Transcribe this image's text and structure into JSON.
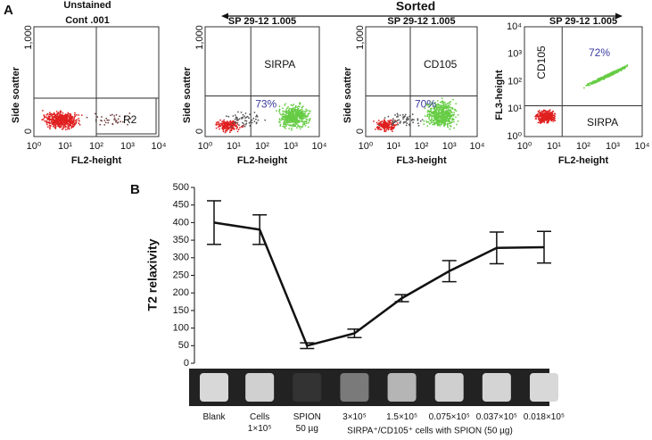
{
  "panel_a": {
    "label": "A",
    "sorted": "Sorted",
    "plots": [
      {
        "title": [
          "Unstained",
          "Cont .001"
        ],
        "ylabel": "Side soatter",
        "xlabel": "FL2-height",
        "xticks": [
          "10⁰",
          "10¹",
          "10²",
          "10³",
          "10⁴"
        ],
        "yticks": [
          "0",
          "1,000"
        ],
        "gates": [
          "R2"
        ]
      },
      {
        "title": [
          "SP 29-12 1.005"
        ],
        "ylabel": "Side soatter",
        "xlabel": "FL2-height",
        "xticks": [
          "10⁰",
          "10¹",
          "10²",
          "10³",
          "10⁴"
        ],
        "yticks": [
          "0",
          "1,000"
        ],
        "gates": [
          "SIRPA"
        ],
        "percent": "73%"
      },
      {
        "title": [
          "SP 29-12 1.005"
        ],
        "ylabel": "Side soatter",
        "xlabel": "FL3-height",
        "xticks": [
          "10⁰",
          "10¹",
          "10²",
          "10³",
          "10⁴"
        ],
        "yticks": [
          "0",
          "1,000"
        ],
        "gates": [
          "CD105"
        ],
        "percent": "70%"
      },
      {
        "title": [
          "SP 29-12 1.005"
        ],
        "ylabel": "FL3-height",
        "xlabel": "FL2-height",
        "xticks": [
          "10⁰",
          "10¹",
          "10²",
          "10³",
          "10⁴"
        ],
        "yticks": [
          "10⁰",
          "10¹",
          "10²",
          "10³",
          "10⁴"
        ],
        "gates": [
          "CD105",
          "SIRPA"
        ],
        "percent": "72%"
      }
    ]
  },
  "chart_data": {
    "type": "line",
    "panel_label": "B",
    "ylabel": "T2 relaxivity",
    "categories": [
      "Blank",
      "Cells\n1×10⁵",
      "SPION\n50 µg",
      "3×10⁵",
      "1.5×10⁵",
      "0.075×10⁵",
      "0.037×10⁵",
      "0.018×10⁵"
    ],
    "values": [
      400,
      380,
      50,
      85,
      185,
      262,
      328,
      330
    ],
    "errors": [
      62,
      42,
      8,
      12,
      10,
      30,
      45,
      45
    ],
    "color": "#111111",
    "ylim": [
      0,
      500
    ],
    "yticks": [
      0,
      50,
      100,
      150,
      200,
      250,
      300,
      350,
      400,
      450,
      500
    ],
    "footnote": "SIRPA⁺/CD105⁺ cells with SPION (50 µg)"
  }
}
